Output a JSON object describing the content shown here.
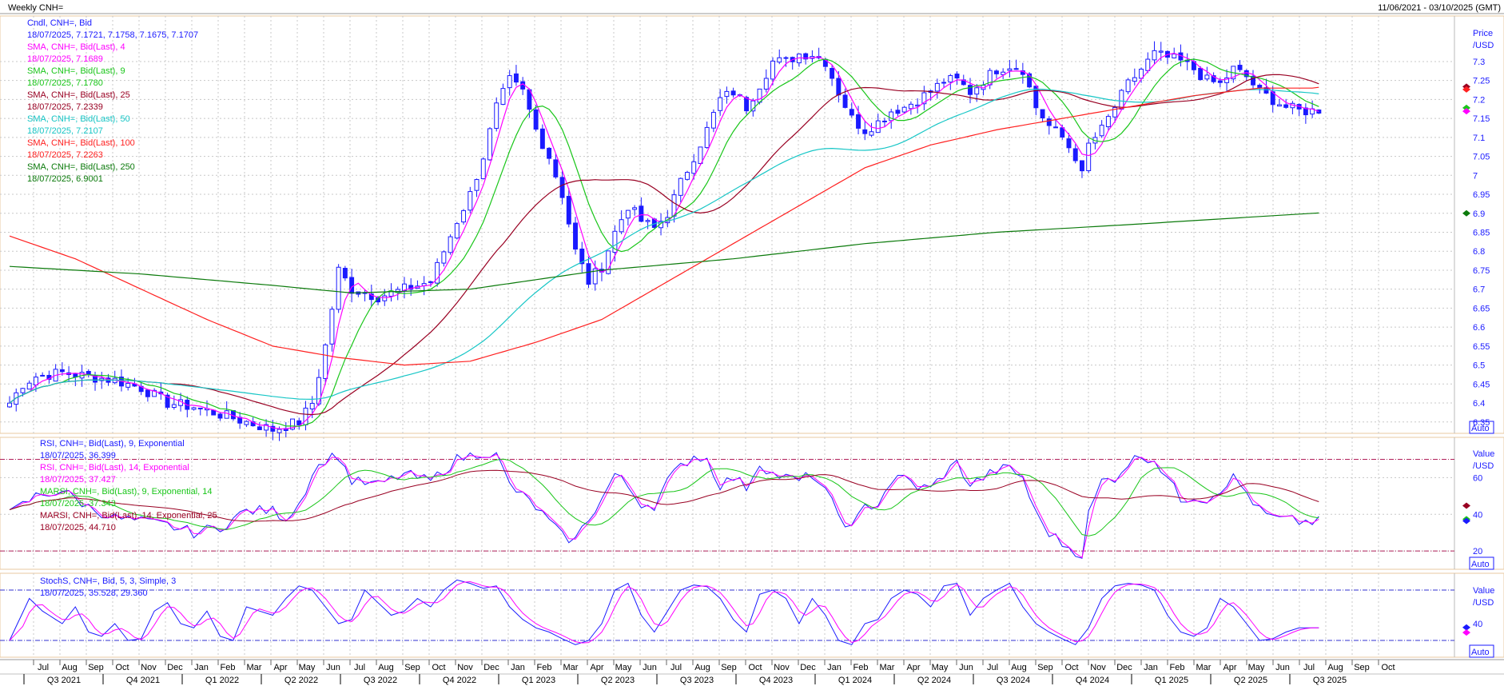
{
  "header": {
    "title": "Weekly CNH=",
    "date_range": "11/06/2021 - 03/10/2025 (GMT)"
  },
  "panes": {
    "price": {
      "unit_label": [
        "Price",
        "/USD"
      ],
      "auto_label": "Auto",
      "legend": [
        {
          "name": "Cndl, CNH=, Bid",
          "values": "18/07/2025, 7.1721, 7.1758, 7.1675, 7.1707",
          "color": "#1a1aff"
        },
        {
          "name": "SMA, CNH=, Bid(Last),  4",
          "values": "18/07/2025, 7.1689",
          "color": "#ff00ff"
        },
        {
          "name": "SMA, CNH=, Bid(Last),  9",
          "values": "18/07/2025, 7.1780",
          "color": "#19c619"
        },
        {
          "name": "SMA, CNH=, Bid(Last),  25",
          "values": "18/07/2025, 7.2339",
          "color": "#990022"
        },
        {
          "name": "SMA, CNH=, Bid(Last),  50",
          "values": "18/07/2025, 7.2107",
          "color": "#17c6c6"
        },
        {
          "name": "SMA, CNH=, Bid(Last),  100",
          "values": "18/07/2025, 7.2263",
          "color": "#ff2020"
        },
        {
          "name": "SMA, CNH=, Bid(Last),  250",
          "values": "18/07/2025, 6.9001",
          "color": "#0b7a0b"
        }
      ],
      "ticks": [
        "7.3",
        "7.25",
        "7.2",
        "7.15",
        "7.1",
        "7.05",
        "7",
        "6.95",
        "6.9",
        "6.85",
        "6.8",
        "6.75",
        "6.7",
        "6.65",
        "6.6",
        "6.55",
        "6.5",
        "6.45",
        "6.4",
        "6.35"
      ]
    },
    "rsi": {
      "unit_label": [
        "Value",
        "/USD"
      ],
      "auto_label": "Auto",
      "legend": [
        {
          "name": "RSI, CNH=, Bid(Last),  9, Exponential",
          "values": "18/07/2025, 36.399",
          "color": "#1a1aff"
        },
        {
          "name": "RSI, CNH=, Bid(Last),  14, Exponential",
          "values": "18/07/2025, 37.427",
          "color": "#ff00ff"
        },
        {
          "name": "MARSI, CNH=, Bid(Last),  9, Exponential, 14",
          "values": "18/07/2025, 37.343",
          "color": "#19c619"
        },
        {
          "name": "MARSI, CNH=, Bid(Last),  14, Exponential, 25",
          "values": "18/07/2025, 44.710",
          "color": "#990022"
        }
      ],
      "ticks": [
        "60",
        "40",
        "20"
      ]
    },
    "stoch": {
      "unit_label": [
        "Value",
        "/USD"
      ],
      "auto_label": "Auto",
      "legend": [
        {
          "name": "StochS, CNH=, Bid,  5, 3, Simple, 3",
          "values": "",
          "color": "#1a1aff"
        },
        {
          "name": "",
          "values": "18/07/2025, 35.528, 29.360",
          "color": "#1a1aff",
          "values2": "29.360",
          "color2": "#ff00ff"
        }
      ],
      "ticks": [
        "40"
      ]
    }
  },
  "x_axis": {
    "months": [
      "Jul",
      "Aug",
      "Sep",
      "Oct",
      "Nov",
      "Dec",
      "Jan",
      "Feb",
      "Mar",
      "Apr",
      "May",
      "Jun",
      "Jul",
      "Aug",
      "Sep",
      "Oct",
      "Nov",
      "Dec",
      "Jan",
      "Feb",
      "Mar",
      "Apr",
      "May",
      "Jun",
      "Jul",
      "Aug",
      "Sep",
      "Oct",
      "Nov",
      "Dec",
      "Jan",
      "Feb",
      "Mar",
      "Apr",
      "May",
      "Jun",
      "Jul",
      "Aug",
      "Sep",
      "Oct",
      "Nov",
      "Dec",
      "Jan",
      "Feb",
      "Mar",
      "Apr",
      "May",
      "Jun",
      "Jul",
      "Aug",
      "Sep",
      "Oct"
    ],
    "quarters": [
      "Q3 2021",
      "Q4 2021",
      "Q1 2022",
      "Q2 2022",
      "Q3 2022",
      "Q4 2022",
      "Q1 2023",
      "Q2 2023",
      "Q3 2023",
      "Q4 2023",
      "Q1 2024",
      "Q2 2024",
      "Q3 2024",
      "Q4 2024",
      "Q1 2025",
      "Q2 2025",
      "Q3 2025"
    ]
  },
  "chart_data": {
    "type": "line",
    "x_start": "2021-07",
    "x_end": "2025-10",
    "price_ylim": [
      6.32,
      7.42
    ],
    "rsi_ylim": [
      10,
      82
    ],
    "stoch_ylim": [
      0,
      100
    ],
    "grid": true,
    "price_anchors": [
      [
        0,
        6.4
      ],
      [
        2,
        6.45
      ],
      [
        4,
        6.47
      ],
      [
        8,
        6.48
      ],
      [
        12,
        6.47
      ],
      [
        16,
        6.46
      ],
      [
        20,
        6.44
      ],
      [
        24,
        6.4
      ],
      [
        28,
        6.39
      ],
      [
        32,
        6.37
      ],
      [
        36,
        6.35
      ],
      [
        40,
        6.33
      ],
      [
        44,
        6.35
      ],
      [
        46,
        6.4
      ],
      [
        48,
        6.55
      ],
      [
        50,
        6.75
      ],
      [
        52,
        6.7
      ],
      [
        56,
        6.68
      ],
      [
        60,
        6.7
      ],
      [
        64,
        6.72
      ],
      [
        68,
        6.88
      ],
      [
        70,
        6.95
      ],
      [
        72,
        7.05
      ],
      [
        74,
        7.18
      ],
      [
        76,
        7.25
      ],
      [
        78,
        7.22
      ],
      [
        80,
        7.12
      ],
      [
        82,
        7.05
      ],
      [
        84,
        6.95
      ],
      [
        86,
        6.8
      ],
      [
        88,
        6.72
      ],
      [
        90,
        6.76
      ],
      [
        92,
        6.85
      ],
      [
        94,
        6.92
      ],
      [
        96,
        6.88
      ],
      [
        98,
        6.86
      ],
      [
        100,
        6.9
      ],
      [
        102,
        6.98
      ],
      [
        104,
        7.05
      ],
      [
        106,
        7.12
      ],
      [
        108,
        7.2
      ],
      [
        110,
        7.22
      ],
      [
        112,
        7.18
      ],
      [
        114,
        7.24
      ],
      [
        116,
        7.3
      ],
      [
        118,
        7.3
      ],
      [
        120,
        7.32
      ],
      [
        122,
        7.32
      ],
      [
        124,
        7.3
      ],
      [
        126,
        7.22
      ],
      [
        128,
        7.15
      ],
      [
        130,
        7.12
      ],
      [
        132,
        7.14
      ],
      [
        134,
        7.17
      ],
      [
        136,
        7.18
      ],
      [
        138,
        7.2
      ],
      [
        140,
        7.22
      ],
      [
        142,
        7.25
      ],
      [
        144,
        7.25
      ],
      [
        146,
        7.22
      ],
      [
        148,
        7.25
      ],
      [
        150,
        7.28
      ],
      [
        152,
        7.29
      ],
      [
        154,
        7.28
      ],
      [
        156,
        7.18
      ],
      [
        158,
        7.13
      ],
      [
        160,
        7.1
      ],
      [
        162,
        7.05
      ],
      [
        163,
        7.0
      ],
      [
        164,
        7.08
      ],
      [
        166,
        7.12
      ],
      [
        168,
        7.18
      ],
      [
        170,
        7.24
      ],
      [
        172,
        7.28
      ],
      [
        174,
        7.32
      ],
      [
        176,
        7.31
      ],
      [
        178,
        7.3
      ],
      [
        180,
        7.28
      ],
      [
        182,
        7.25
      ],
      [
        184,
        7.24
      ],
      [
        186,
        7.28
      ],
      [
        188,
        7.26
      ],
      [
        190,
        7.22
      ],
      [
        192,
        7.2
      ],
      [
        194,
        7.18
      ],
      [
        196,
        7.17
      ],
      [
        198,
        7.17
      ]
    ],
    "series": [
      {
        "name": "Cndl, CNH=, Bid",
        "values": "candles"
      },
      {
        "name": "SMA, CNH=, Bid(Last),  4",
        "period": 4
      },
      {
        "name": "SMA, CNH=, Bid(Last),  9",
        "period": 9
      },
      {
        "name": "SMA, CNH=, Bid(Last),  25",
        "period": 25
      },
      {
        "name": "SMA, CNH=, Bid(Last),  50",
        "period": 50
      },
      {
        "name": "SMA, CNH=, Bid(Last),  100",
        "period": 100
      },
      {
        "name": "SMA, CNH=, Bid(Last),  250",
        "period": 250
      }
    ],
    "sma250_anchors": [
      [
        0,
        6.76
      ],
      [
        20,
        6.74
      ],
      [
        40,
        6.71
      ],
      [
        52,
        6.69
      ],
      [
        70,
        6.7
      ],
      [
        90,
        6.75
      ],
      [
        110,
        6.78
      ],
      [
        130,
        6.82
      ],
      [
        150,
        6.85
      ],
      [
        170,
        6.87
      ],
      [
        198,
        6.9
      ]
    ],
    "sma100_anchors": [
      [
        0,
        6.84
      ],
      [
        10,
        6.78
      ],
      [
        20,
        6.7
      ],
      [
        30,
        6.62
      ],
      [
        40,
        6.55
      ],
      [
        50,
        6.52
      ],
      [
        60,
        6.5
      ],
      [
        70,
        6.51
      ],
      [
        80,
        6.56
      ],
      [
        90,
        6.62
      ],
      [
        100,
        6.72
      ],
      [
        110,
        6.82
      ],
      [
        120,
        6.92
      ],
      [
        130,
        7.02
      ],
      [
        140,
        7.08
      ],
      [
        150,
        7.12
      ],
      [
        160,
        7.15
      ],
      [
        170,
        7.18
      ],
      [
        180,
        7.21
      ],
      [
        190,
        7.23
      ],
      [
        198,
        7.23
      ]
    ],
    "rsi_anchors": [
      [
        0,
        40
      ],
      [
        4,
        50
      ],
      [
        8,
        53
      ],
      [
        12,
        44
      ],
      [
        16,
        38
      ],
      [
        20,
        36
      ],
      [
        24,
        34
      ],
      [
        28,
        30
      ],
      [
        32,
        33
      ],
      [
        36,
        42
      ],
      [
        40,
        42
      ],
      [
        42,
        38
      ],
      [
        44,
        46
      ],
      [
        46,
        62
      ],
      [
        48,
        70
      ],
      [
        50,
        72
      ],
      [
        52,
        58
      ],
      [
        56,
        56
      ],
      [
        60,
        62
      ],
      [
        64,
        58
      ],
      [
        68,
        70
      ],
      [
        72,
        74
      ],
      [
        74,
        72
      ],
      [
        76,
        56
      ],
      [
        78,
        50
      ],
      [
        80,
        44
      ],
      [
        82,
        36
      ],
      [
        84,
        28
      ],
      [
        86,
        26
      ],
      [
        88,
        38
      ],
      [
        90,
        48
      ],
      [
        92,
        62
      ],
      [
        94,
        55
      ],
      [
        96,
        46
      ],
      [
        98,
        45
      ],
      [
        100,
        58
      ],
      [
        102,
        66
      ],
      [
        104,
        72
      ],
      [
        106,
        70
      ],
      [
        108,
        56
      ],
      [
        110,
        60
      ],
      [
        112,
        55
      ],
      [
        114,
        68
      ],
      [
        116,
        62
      ],
      [
        118,
        60
      ],
      [
        120,
        58
      ],
      [
        122,
        62
      ],
      [
        124,
        52
      ],
      [
        126,
        40
      ],
      [
        128,
        32
      ],
      [
        130,
        44
      ],
      [
        132,
        46
      ],
      [
        134,
        58
      ],
      [
        136,
        60
      ],
      [
        138,
        55
      ],
      [
        140,
        54
      ],
      [
        142,
        62
      ],
      [
        144,
        68
      ],
      [
        146,
        56
      ],
      [
        148,
        60
      ],
      [
        150,
        64
      ],
      [
        152,
        65
      ],
      [
        154,
        60
      ],
      [
        156,
        40
      ],
      [
        158,
        30
      ],
      [
        160,
        24
      ],
      [
        162,
        20
      ],
      [
        163,
        18
      ],
      [
        164,
        40
      ],
      [
        166,
        58
      ],
      [
        168,
        60
      ],
      [
        170,
        68
      ],
      [
        172,
        72
      ],
      [
        174,
        70
      ],
      [
        176,
        60
      ],
      [
        178,
        48
      ],
      [
        180,
        50
      ],
      [
        182,
        48
      ],
      [
        184,
        54
      ],
      [
        186,
        60
      ],
      [
        188,
        52
      ],
      [
        190,
        42
      ],
      [
        192,
        38
      ],
      [
        194,
        37
      ],
      [
        196,
        36
      ],
      [
        198,
        36
      ]
    ],
    "stoch_anchors": [
      [
        0,
        20
      ],
      [
        3,
        70
      ],
      [
        5,
        55
      ],
      [
        8,
        40
      ],
      [
        10,
        60
      ],
      [
        12,
        30
      ],
      [
        14,
        25
      ],
      [
        16,
        40
      ],
      [
        18,
        20
      ],
      [
        20,
        22
      ],
      [
        22,
        55
      ],
      [
        24,
        65
      ],
      [
        26,
        40
      ],
      [
        28,
        35
      ],
      [
        30,
        55
      ],
      [
        32,
        25
      ],
      [
        34,
        20
      ],
      [
        36,
        60
      ],
      [
        38,
        55
      ],
      [
        40,
        50
      ],
      [
        42,
        70
      ],
      [
        44,
        85
      ],
      [
        46,
        80
      ],
      [
        48,
        60
      ],
      [
        50,
        40
      ],
      [
        52,
        45
      ],
      [
        54,
        80
      ],
      [
        56,
        65
      ],
      [
        58,
        50
      ],
      [
        60,
        55
      ],
      [
        62,
        70
      ],
      [
        64,
        60
      ],
      [
        66,
        80
      ],
      [
        68,
        92
      ],
      [
        70,
        88
      ],
      [
        72,
        82
      ],
      [
        74,
        85
      ],
      [
        76,
        60
      ],
      [
        78,
        45
      ],
      [
        80,
        35
      ],
      [
        82,
        30
      ],
      [
        84,
        22
      ],
      [
        86,
        15
      ],
      [
        88,
        20
      ],
      [
        90,
        40
      ],
      [
        92,
        80
      ],
      [
        94,
        88
      ],
      [
        96,
        50
      ],
      [
        98,
        30
      ],
      [
        100,
        55
      ],
      [
        102,
        80
      ],
      [
        104,
        86
      ],
      [
        106,
        84
      ],
      [
        108,
        70
      ],
      [
        110,
        45
      ],
      [
        112,
        30
      ],
      [
        114,
        75
      ],
      [
        116,
        80
      ],
      [
        118,
        70
      ],
      [
        120,
        40
      ],
      [
        122,
        70
      ],
      [
        124,
        50
      ],
      [
        126,
        20
      ],
      [
        128,
        15
      ],
      [
        130,
        40
      ],
      [
        132,
        45
      ],
      [
        134,
        70
      ],
      [
        136,
        80
      ],
      [
        138,
        75
      ],
      [
        140,
        60
      ],
      [
        142,
        85
      ],
      [
        144,
        88
      ],
      [
        146,
        50
      ],
      [
        148,
        70
      ],
      [
        150,
        80
      ],
      [
        152,
        88
      ],
      [
        154,
        60
      ],
      [
        156,
        40
      ],
      [
        158,
        30
      ],
      [
        160,
        22
      ],
      [
        162,
        15
      ],
      [
        164,
        35
      ],
      [
        166,
        70
      ],
      [
        168,
        85
      ],
      [
        170,
        88
      ],
      [
        172,
        86
      ],
      [
        174,
        80
      ],
      [
        176,
        50
      ],
      [
        178,
        30
      ],
      [
        180,
        25
      ],
      [
        182,
        35
      ],
      [
        184,
        70
      ],
      [
        186,
        60
      ],
      [
        188,
        40
      ],
      [
        190,
        20
      ],
      [
        192,
        22
      ],
      [
        194,
        30
      ],
      [
        196,
        35
      ],
      [
        198,
        35
      ]
    ]
  }
}
